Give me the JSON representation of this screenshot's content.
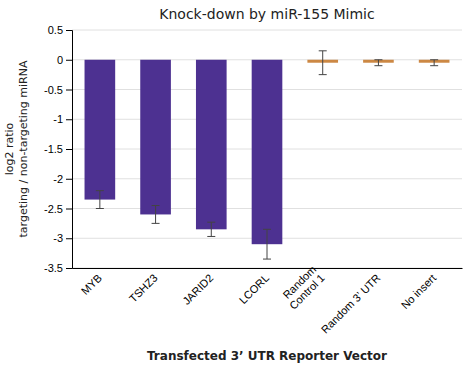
{
  "chart_data": {
    "type": "bar",
    "title": "Knock-down by miR-155 Mimic",
    "x_label": "Transfected 3’ UTR Reporter Vector",
    "y_label": "log2 ratio\ntargeting / non-targeting miRNA",
    "categories": [
      "MYB",
      "TSHZ3",
      "JARID2",
      "LCORL",
      "Random\nControl 1",
      "Random 3’ UTR",
      "No insert"
    ],
    "values": [
      -2.35,
      -2.6,
      -2.85,
      -3.1,
      -0.05,
      -0.05,
      -0.05
    ],
    "errors": [
      0.15,
      0.15,
      0.12,
      0.25,
      0.2,
      0.05,
      0.05
    ],
    "colors": [
      "#4d3191",
      "#4d3191",
      "#4d3191",
      "#4d3191",
      "#cc8844",
      "#cc8844",
      "#cc8844"
    ],
    "ylim": [
      -3.5,
      0.5
    ],
    "yticks": [
      0.5,
      0,
      -0.5,
      -1,
      -1.5,
      -2,
      -2.5,
      -3,
      -3.5
    ],
    "grid": true
  }
}
